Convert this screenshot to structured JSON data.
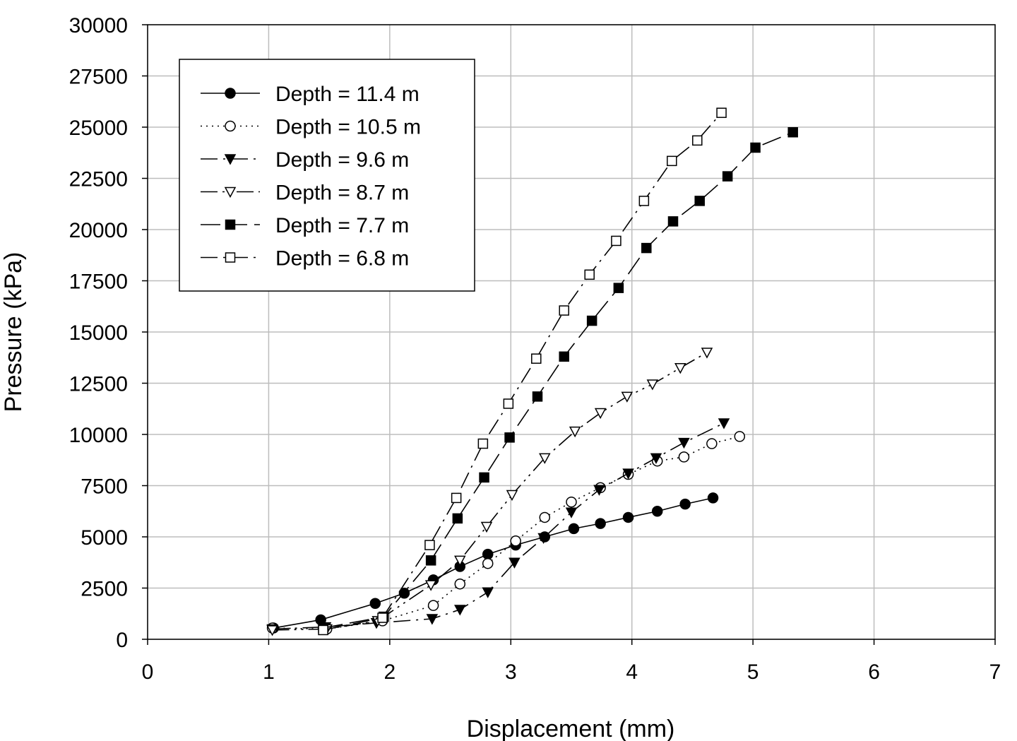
{
  "chart_data": {
    "type": "line",
    "title": "",
    "xlabel": "Displacement (mm)",
    "ylabel": "Pressure (kPa)",
    "xlim": [
      0,
      7
    ],
    "ylim": [
      0,
      30000
    ],
    "xticks": [
      0,
      1,
      2,
      3,
      4,
      5,
      6,
      7
    ],
    "yticks": [
      0,
      2500,
      5000,
      7500,
      10000,
      12500,
      15000,
      17500,
      20000,
      22500,
      25000,
      27500,
      30000
    ],
    "grid": true,
    "legend_position": "top-left",
    "series": [
      {
        "name": "Depth = 11.4 m",
        "marker": "filled-circle",
        "line_style": "solid",
        "x": [
          1.04,
          1.43,
          1.88,
          2.12,
          2.36,
          2.58,
          2.81,
          3.04,
          3.28,
          3.52,
          3.74,
          3.97,
          4.21,
          4.44,
          4.67
        ],
        "y": [
          550,
          950,
          1750,
          2250,
          2900,
          3550,
          4150,
          4600,
          5000,
          5400,
          5650,
          5950,
          6250,
          6600,
          6900
        ]
      },
      {
        "name": "Depth = 10.5 m",
        "marker": "open-circle",
        "line_style": "dotted",
        "x": [
          1.03,
          1.48,
          1.94,
          2.36,
          2.58,
          2.81,
          3.04,
          3.28,
          3.5,
          3.74,
          3.97,
          4.21,
          4.43,
          4.66,
          4.89
        ],
        "y": [
          550,
          500,
          900,
          1650,
          2700,
          3700,
          4800,
          5950,
          6700,
          7400,
          8050,
          8700,
          8900,
          9550,
          9900
        ]
      },
      {
        "name": "Depth = 9.6 m",
        "marker": "filled-triangle-down",
        "line_style": "dashdot",
        "x": [
          1.03,
          1.47,
          1.89,
          2.35,
          2.58,
          2.81,
          3.03,
          3.27,
          3.5,
          3.73,
          3.97,
          4.2,
          4.43,
          4.76
        ],
        "y": [
          500,
          600,
          800,
          1000,
          1450,
          2300,
          3750,
          4950,
          6200,
          7300,
          8100,
          8850,
          9600,
          10550
        ]
      },
      {
        "name": "Depth = 8.7 m",
        "marker": "open-triangle-down",
        "line_style": "dashdotdot",
        "x": [
          1.03,
          1.48,
          1.9,
          2.34,
          2.58,
          2.8,
          3.01,
          3.28,
          3.53,
          3.74,
          3.96,
          4.17,
          4.4,
          4.62
        ],
        "y": [
          450,
          500,
          900,
          2650,
          3850,
          5500,
          7050,
          8850,
          10150,
          11050,
          11850,
          12450,
          13250,
          14000
        ]
      },
      {
        "name": "Depth = 7.7 m",
        "marker": "filled-square",
        "line_style": "longdash",
        "x": [
          1.45,
          1.95,
          2.34,
          2.56,
          2.78,
          2.99,
          3.22,
          3.44,
          3.67,
          3.89,
          4.12,
          4.34,
          4.56,
          4.79,
          5.02,
          5.33
        ],
        "y": [
          550,
          1100,
          3850,
          5900,
          7900,
          9850,
          11850,
          13800,
          15550,
          17150,
          19100,
          20400,
          21400,
          22600,
          24000,
          24750
        ]
      },
      {
        "name": "Depth = 6.8 m",
        "marker": "open-square",
        "line_style": "dashdot",
        "x": [
          1.45,
          1.94,
          2.33,
          2.55,
          2.77,
          2.98,
          3.21,
          3.44,
          3.65,
          3.87,
          4.1,
          4.33,
          4.54,
          4.74
        ],
        "y": [
          450,
          1050,
          4600,
          6900,
          9550,
          11500,
          13700,
          16050,
          17800,
          19450,
          21400,
          23350,
          24350,
          25700
        ]
      }
    ]
  }
}
